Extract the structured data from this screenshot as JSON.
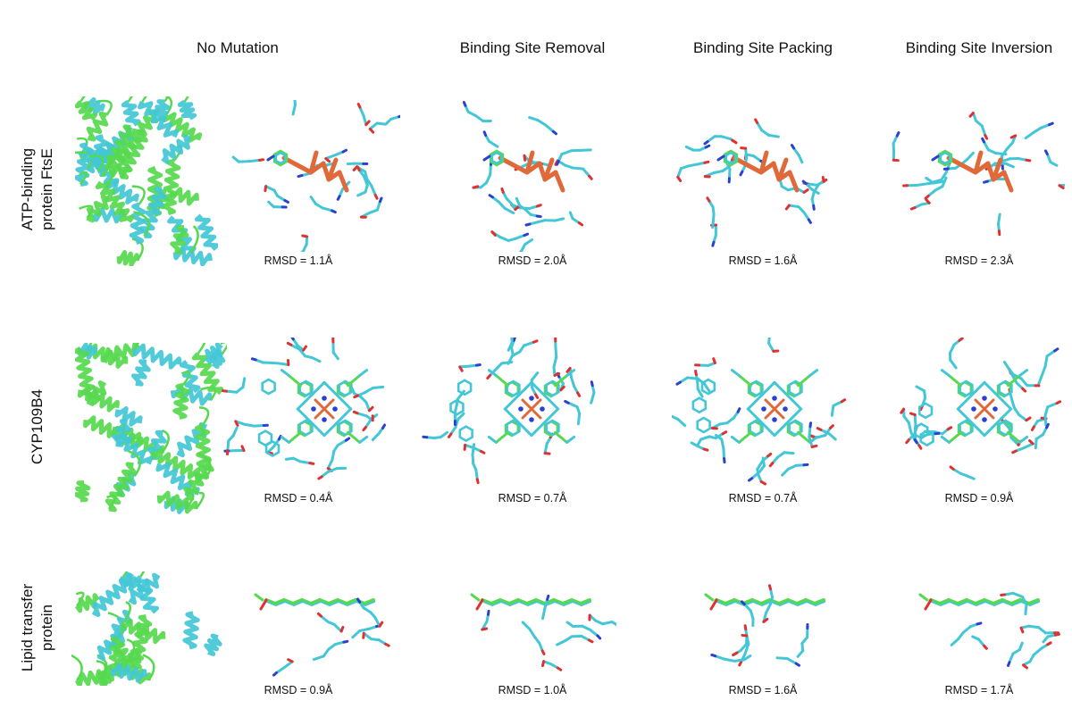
{
  "columns": [
    {
      "label": "No Mutation"
    },
    {
      "label": "Binding Site Removal"
    },
    {
      "label": "Binding Site Packing"
    },
    {
      "label": "Binding Site Inversion"
    }
  ],
  "rows": [
    {
      "label_line1": "ATP-binding",
      "label_line2": "protein FtsE",
      "ligand": "ATP",
      "rmsd": [
        "RMSD = 1.1Å",
        "RMSD = 2.0Å",
        "RMSD = 1.6Å",
        "RMSD = 2.3Å"
      ]
    },
    {
      "label_line1": "CYP109B4",
      "label_line2": "",
      "ligand": "heme",
      "rmsd": [
        "RMSD = 0.4Å",
        "RMSD = 0.7Å",
        "RMSD = 0.7Å",
        "RMSD = 0.9Å"
      ]
    },
    {
      "label_line1": "Lipid transfer",
      "label_line2": "protein",
      "ligand": "lipid",
      "rmsd": [
        "RMSD = 0.9Å",
        "RMSD = 1.0Å",
        "RMSD = 1.6Å",
        "RMSD = 1.7Å"
      ]
    }
  ],
  "colors": {
    "cyan": "#43c7d6",
    "green": "#56d94e",
    "orange": "#e0693a",
    "blue": "#2c3fd1",
    "red": "#e03030"
  }
}
